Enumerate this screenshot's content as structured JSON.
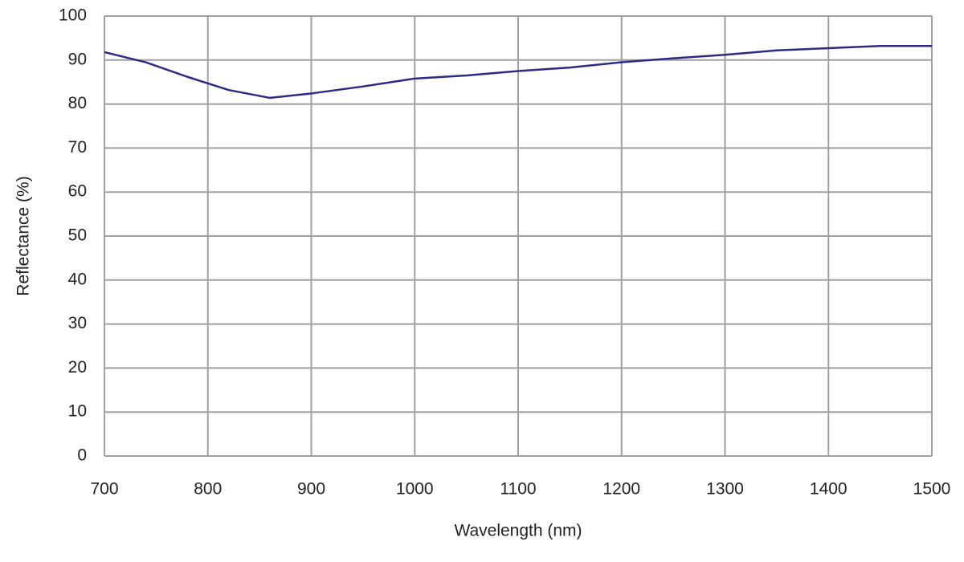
{
  "chart_data": {
    "type": "line",
    "x_label": "Wavelength (nm)",
    "y_label": "Reflectance (%)",
    "x": [
      700,
      740,
      780,
      820,
      860,
      900,
      950,
      1000,
      1050,
      1100,
      1150,
      1200,
      1250,
      1300,
      1350,
      1400,
      1450,
      1500
    ],
    "series": [
      {
        "name": "Reflectance",
        "color": "#2b2b85",
        "values": [
          91.8,
          89.5,
          86.2,
          83.2,
          81.4,
          82.4,
          84.0,
          85.8,
          86.5,
          87.5,
          88.3,
          89.5,
          90.4,
          91.2,
          92.2,
          92.7,
          93.2,
          93.2
        ]
      }
    ],
    "xlim": [
      700,
      1500
    ],
    "xticks": [
      700,
      800,
      900,
      1000,
      1100,
      1200,
      1300,
      1400,
      1500
    ],
    "ylim": [
      0,
      100
    ],
    "yticks": [
      0,
      10,
      20,
      30,
      40,
      50,
      60,
      70,
      80,
      90,
      100
    ],
    "grid": true
  }
}
